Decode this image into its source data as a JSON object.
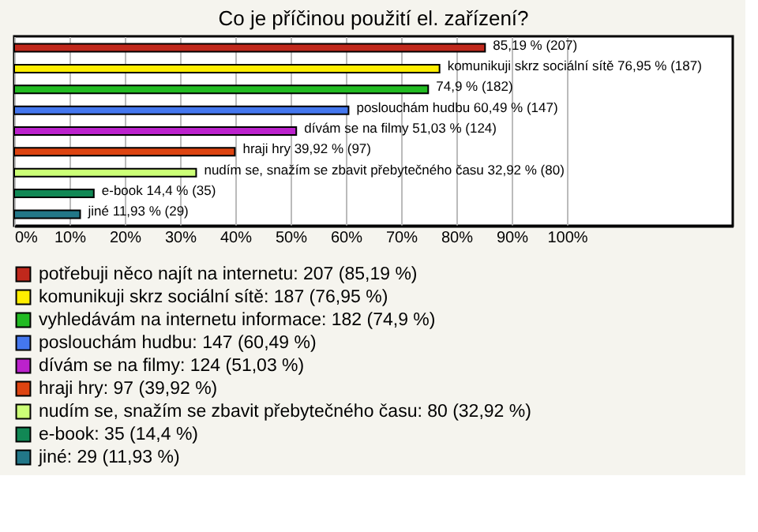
{
  "chart_data": {
    "type": "bar",
    "orientation": "horizontal",
    "title": "Co je příčinou použití el. zařízení?",
    "categories": [
      null,
      null,
      null,
      null,
      null,
      null,
      null,
      null,
      null
    ],
    "series": [
      {
        "name": "potřebuji něco najít na internetu: 207 (85,19 %)",
        "color": "#c0281c",
        "values": [
          85.19,
          null,
          null,
          null,
          null,
          null,
          null,
          null,
          null
        ],
        "value_labels": [
          "85,19 % (207)",
          null,
          null,
          null,
          null,
          null,
          null,
          null,
          null
        ]
      },
      {
        "name": "komunikuji skrz sociální sítě: 187 (76,95 %)",
        "color": "#ffee00",
        "values": [
          null,
          76.95,
          null,
          null,
          null,
          null,
          null,
          null,
          null
        ],
        "value_labels": [
          null,
          "komunikuji skrz sociální sítě 76,95 % (187)",
          null,
          null,
          null,
          null,
          null,
          null,
          null
        ]
      },
      {
        "name": "vyhledávám na internetu informace: 182 (74,9 %)",
        "color": "#22bb22",
        "values": [
          null,
          null,
          74.9,
          null,
          null,
          null,
          null,
          null,
          null
        ],
        "value_labels": [
          null,
          null,
          "74,9 % (182)",
          null,
          null,
          null,
          null,
          null,
          null
        ]
      },
      {
        "name": "poslouchám hudbu: 147 (60,49 %)",
        "color": "#4477ee",
        "values": [
          null,
          null,
          null,
          60.49,
          null,
          null,
          null,
          null,
          null
        ],
        "value_labels": [
          null,
          null,
          null,
          "poslouchám hudbu 60,49 % (147)",
          null,
          null,
          null,
          null,
          null
        ]
      },
      {
        "name": "dívám se na filmy: 124 (51,03 %)",
        "color": "#bb22cc",
        "values": [
          null,
          null,
          null,
          null,
          51.03,
          null,
          null,
          null,
          null
        ],
        "value_labels": [
          null,
          null,
          null,
          null,
          "dívám se na filmy 51,03 % (124)",
          null,
          null,
          null,
          null
        ]
      },
      {
        "name": "hraji hry: 97 (39,92 %)",
        "color": "#dd4411",
        "values": [
          null,
          null,
          null,
          null,
          null,
          39.92,
          null,
          null,
          null
        ],
        "value_labels": [
          null,
          null,
          null,
          null,
          null,
          "hraji hry 39,92 % (97)",
          null,
          null,
          null
        ]
      },
      {
        "name": "nudím se, snažím se zbavit přebytečného času: 80 (32,92 %)",
        "color": "#ccff77",
        "values": [
          null,
          null,
          null,
          null,
          null,
          null,
          32.92,
          null,
          null
        ],
        "value_labels": [
          null,
          null,
          null,
          null,
          null,
          null,
          "nudím se, snažím se zbavit přebytečného času 32,92 % (80)",
          null,
          null
        ]
      },
      {
        "name": "e-book: 35 (14,4 %)",
        "color": "#118855",
        "values": [
          null,
          null,
          null,
          null,
          null,
          null,
          null,
          14.4,
          null
        ],
        "value_labels": [
          null,
          null,
          null,
          null,
          null,
          null,
          null,
          "e-book 14,4 % (35)",
          null
        ]
      },
      {
        "name": "jiné: 29 (11,93 %)",
        "color": "#227788",
        "values": [
          null,
          null,
          null,
          null,
          null,
          null,
          null,
          null,
          11.93
        ],
        "value_labels": [
          null,
          null,
          null,
          null,
          null,
          null,
          null,
          null,
          "jiné 11,93 % (29)"
        ]
      }
    ],
    "xlim": [
      0,
      130
    ],
    "xticks": [
      {
        "value": 0,
        "label": "0%"
      },
      {
        "value": 10,
        "label": "10%"
      },
      {
        "value": 20,
        "label": "20%"
      },
      {
        "value": 30,
        "label": "30%"
      },
      {
        "value": 40,
        "label": "40%"
      },
      {
        "value": 50,
        "label": "50%"
      },
      {
        "value": 60,
        "label": "60%"
      },
      {
        "value": 70,
        "label": "70%"
      },
      {
        "value": 80,
        "label": "80%"
      },
      {
        "value": 90,
        "label": "90%"
      },
      {
        "value": 100,
        "label": "100%"
      }
    ],
    "grid": "x",
    "legend": "bottom"
  }
}
